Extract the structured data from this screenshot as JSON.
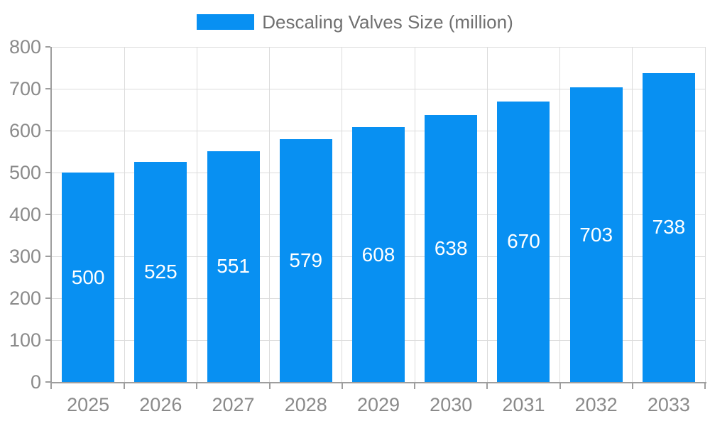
{
  "chart_data": {
    "type": "bar",
    "title": "Descaling Valves Size (million)",
    "categories": [
      "2025",
      "2026",
      "2027",
      "2028",
      "2029",
      "2030",
      "2031",
      "2032",
      "2033"
    ],
    "values": [
      500,
      525,
      551,
      579,
      608,
      638,
      670,
      703,
      738
    ],
    "xlabel": "",
    "ylabel": "",
    "ylim": [
      0,
      800
    ],
    "ytick_interval": 100,
    "grid": true,
    "legend_position": "top",
    "colors": {
      "bar": "#0890f2",
      "bar_label": "#ffffff",
      "axis_line": "#9e9e9e",
      "gridline": "#dcdcdc",
      "tick_text": "#8a8a8a",
      "title_text": "#707070"
    }
  }
}
